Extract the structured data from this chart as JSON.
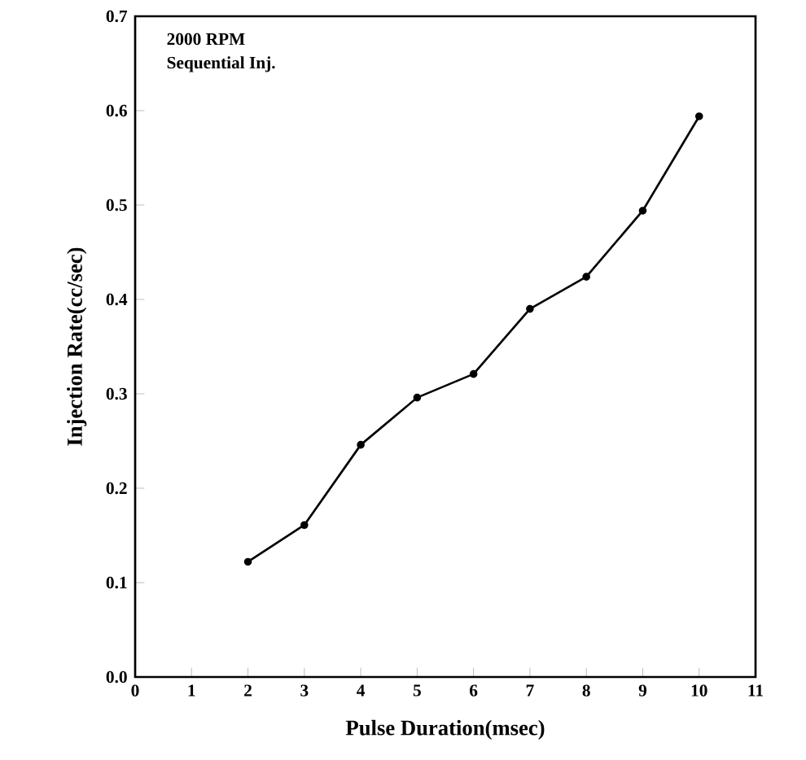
{
  "chart_data": {
    "type": "line",
    "xlabel": "Pulse Duration(msec)",
    "ylabel": "Injection Rate(cc/sec)",
    "annotations": [
      "2000 RPM",
      "Sequential Inj."
    ],
    "x": [
      2,
      3,
      4,
      5,
      6,
      7,
      8,
      9,
      10
    ],
    "series": [
      {
        "color": "#000000",
        "values": [
          0.122,
          0.161,
          0.246,
          0.296,
          0.321,
          0.39,
          0.424,
          0.494,
          0.594
        ]
      }
    ],
    "xlim": [
      0,
      11
    ],
    "xticks": [
      0,
      1,
      2,
      3,
      4,
      5,
      6,
      7,
      8,
      9,
      10,
      11
    ],
    "ylim": [
      0,
      0.7
    ],
    "yticks": [
      {
        "value": 0,
        "label": "0.0"
      },
      0.1,
      0.2,
      0.3,
      0.4,
      0.5,
      0.6,
      0.7
    ],
    "marker": "circle",
    "line_style": "solid"
  }
}
